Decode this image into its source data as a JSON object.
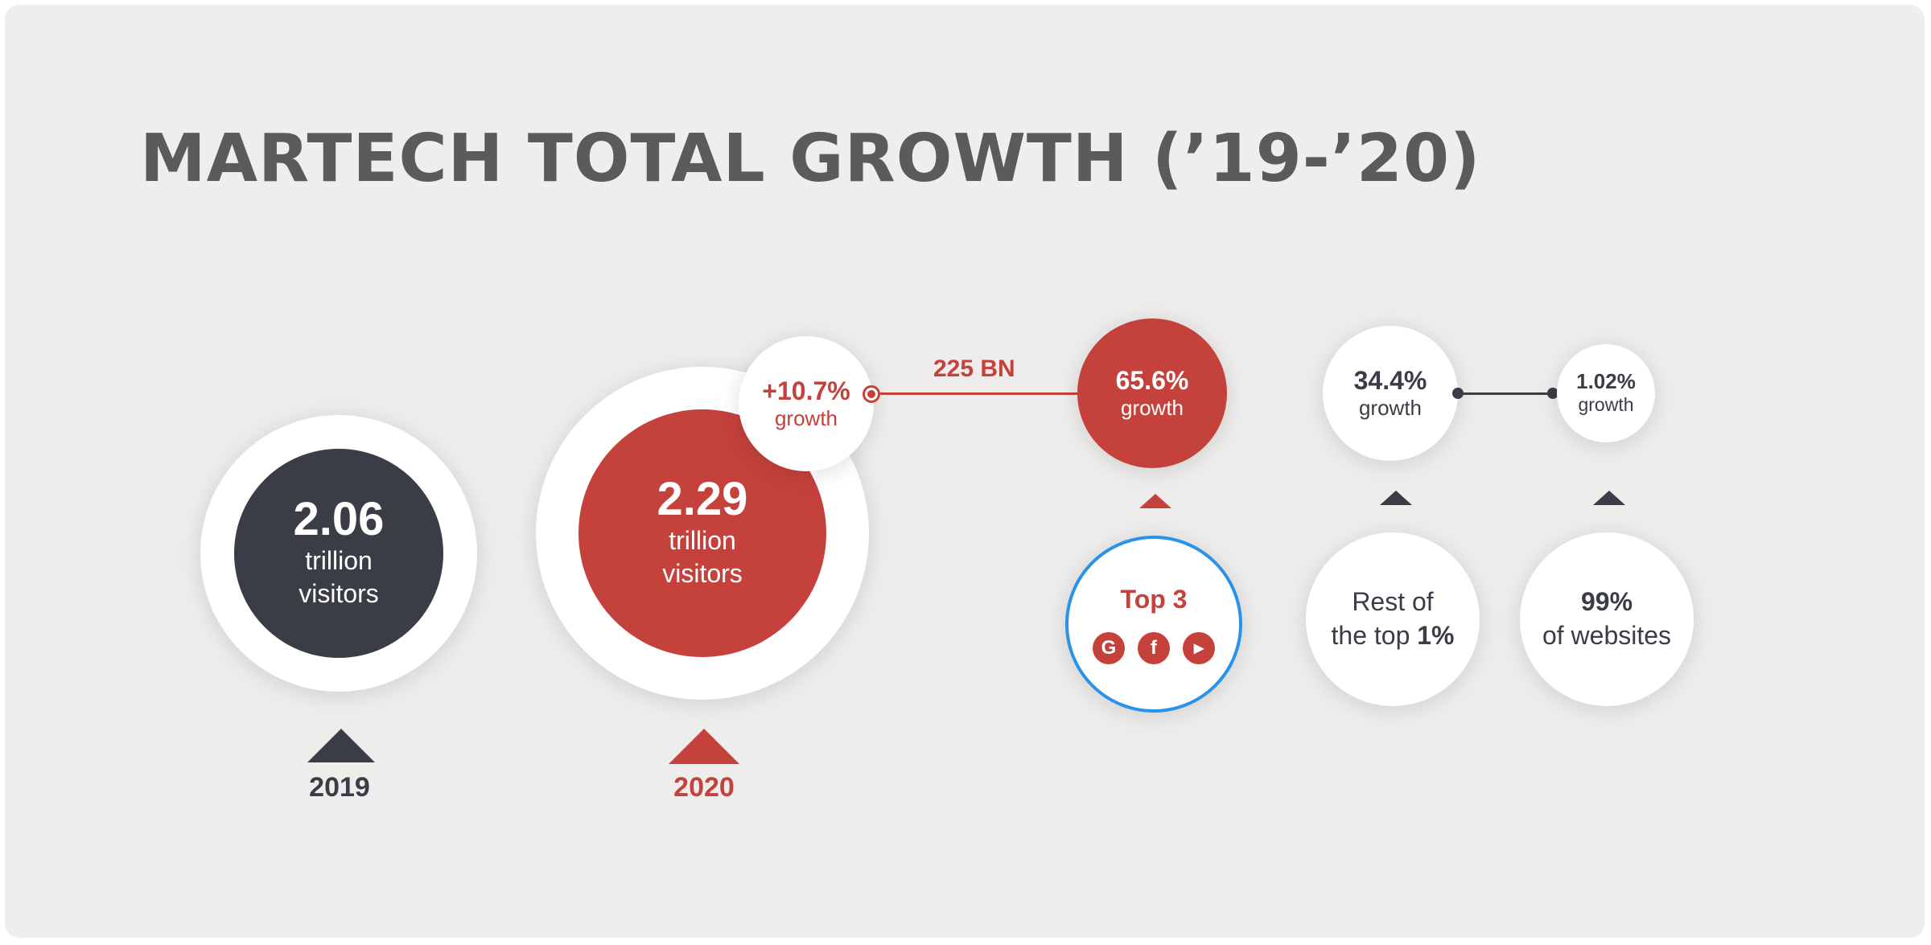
{
  "title": "MARTECH TOTAL GROWTH (’19-’20)",
  "colors": {
    "dark": "#3b3d46",
    "red": "#c5413b",
    "blue_ring": "#2a93e8",
    "title": "#5b5b5b"
  },
  "year_2019": {
    "value": "2.06",
    "line1": "trillion",
    "line2": "visitors",
    "label": "2019"
  },
  "year_2020": {
    "value": "2.29",
    "line1": "trillion",
    "line2": "visitors",
    "label": "2020"
  },
  "growth_total": {
    "value": "+10.7%",
    "label": "growth"
  },
  "connector_label": "225 BN",
  "top3_growth": {
    "value": "65.6%",
    "label": "growth"
  },
  "top3": {
    "label": "Top 3",
    "icons": [
      {
        "name": "google-icon",
        "glyph": "G"
      },
      {
        "name": "facebook-icon",
        "glyph": "f"
      },
      {
        "name": "youtube-icon",
        "glyph": "▶"
      }
    ]
  },
  "rest_growth": {
    "value": "34.4%",
    "label": "growth"
  },
  "rest": {
    "line1": "Rest of",
    "line2_prefix": "the top ",
    "line2_bold": "1%"
  },
  "websites_growth": {
    "value": "1.02%",
    "label": "growth"
  },
  "websites": {
    "line1": "99%",
    "line2": "of websites"
  }
}
